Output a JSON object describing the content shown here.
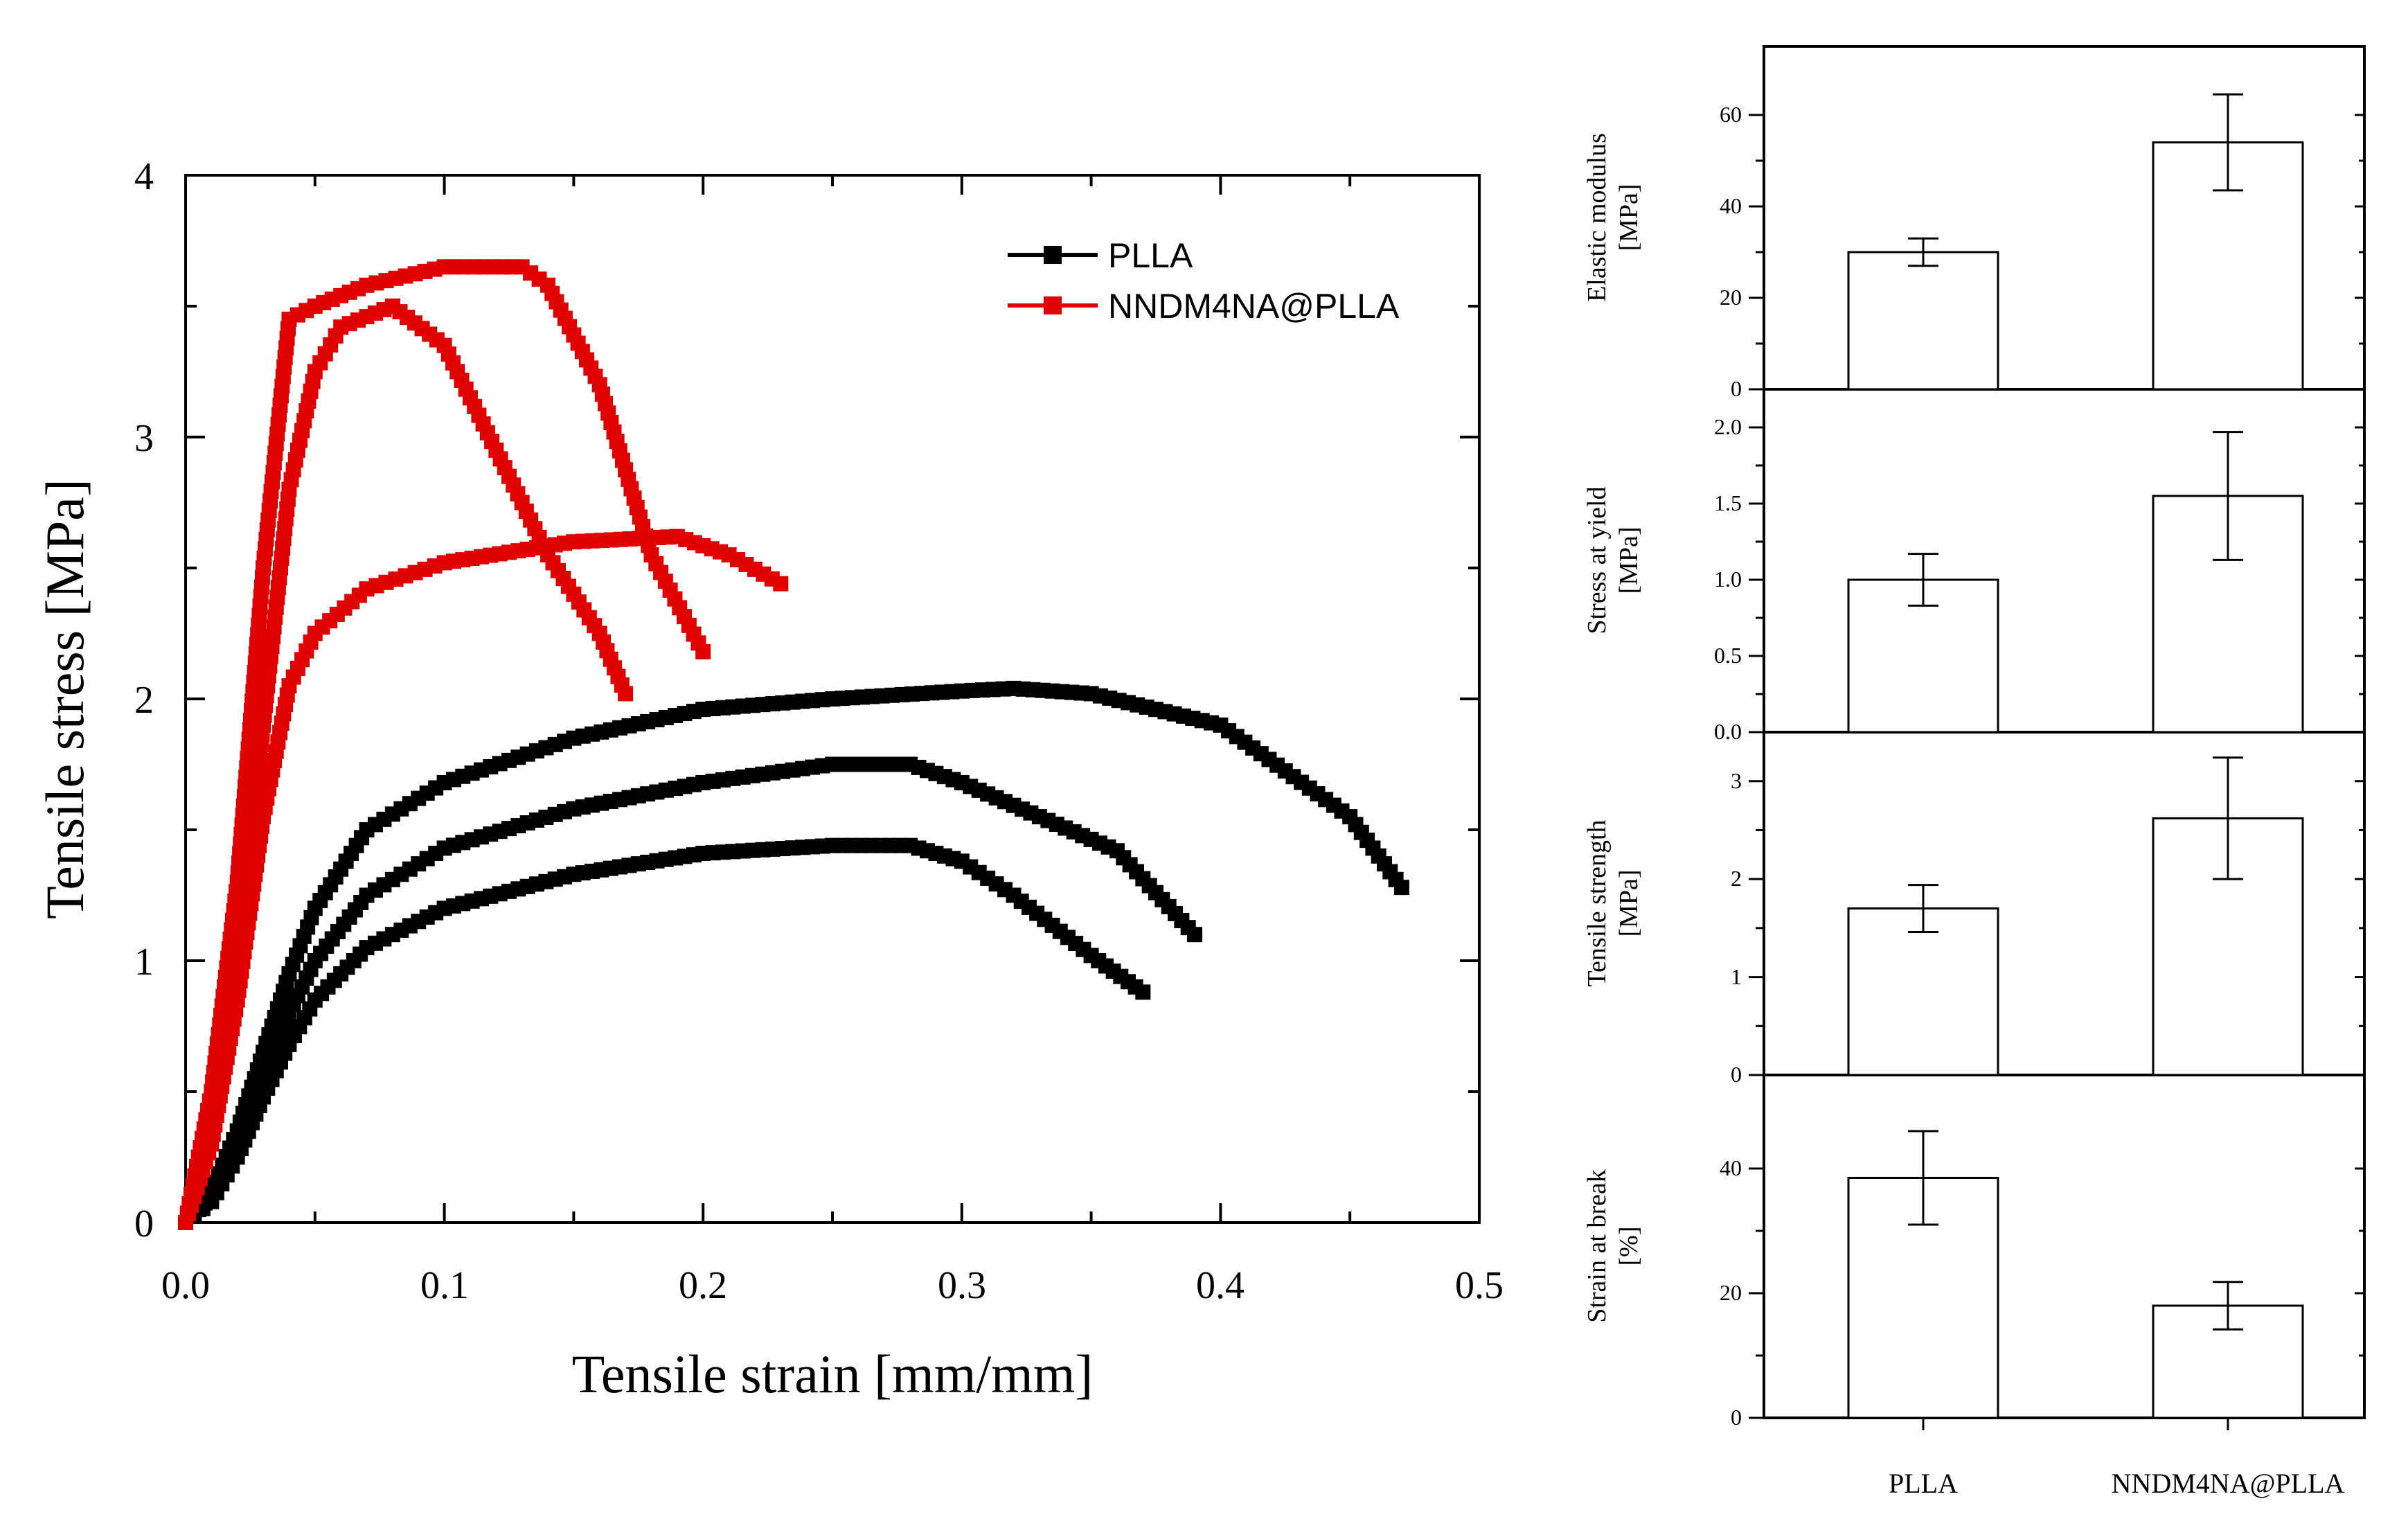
{
  "main_chart": {
    "xlabel": "Tensile strain [mm/mm]",
    "ylabel": "Tensile stress [MPa]",
    "xticks": [
      "0.0",
      "0.1",
      "0.2",
      "0.3",
      "0.4",
      "0.5"
    ],
    "yticks": [
      "0",
      "1",
      "2",
      "3",
      "4"
    ],
    "legend": [
      "PLLA",
      "NNDM4NA@PLLA"
    ]
  },
  "bar_panels": {
    "categories": [
      "PLLA",
      "NNDM4NA@PLLA"
    ],
    "panels": [
      {
        "ylabel_line1": "Elastic modulus",
        "ylabel_line2": "[MPa]",
        "ticks": [
          "0",
          "20",
          "40",
          "60"
        ]
      },
      {
        "ylabel_line1": "Stress at yield",
        "ylabel_line2": "[MPa]",
        "ticks": [
          "0.0",
          "0.5",
          "1.0",
          "1.5",
          "2.0"
        ]
      },
      {
        "ylabel_line1": "Tensile strength",
        "ylabel_line2": "[MPa]",
        "ticks": [
          "0",
          "1",
          "2",
          "3"
        ]
      },
      {
        "ylabel_line1": "Strain at break",
        "ylabel_line2": "[%]",
        "ticks": [
          "0",
          "20",
          "40"
        ]
      }
    ]
  },
  "chart_data": [
    {
      "type": "line",
      "title": "",
      "xlabel": "Tensile strain [mm/mm]",
      "ylabel": "Tensile stress [MPa]",
      "xlim": [
        0,
        0.5
      ],
      "ylim": [
        0,
        4
      ],
      "legend_position": "top-right",
      "series": [
        {
          "name": "PLLA",
          "color": "#000000",
          "marker": "square",
          "x": [
            0,
            0.01,
            0.02,
            0.03,
            0.04,
            0.05,
            0.07,
            0.1,
            0.15,
            0.2,
            0.25,
            0.3,
            0.32,
            0.35,
            0.4,
            0.45,
            0.47
          ],
          "y": [
            0,
            0.12,
            0.35,
            0.65,
            0.95,
            1.2,
            1.5,
            1.68,
            1.85,
            1.96,
            2.0,
            2.03,
            2.04,
            2.02,
            1.9,
            1.55,
            1.28
          ]
        },
        {
          "name": "PLLA",
          "color": "#000000",
          "marker": "square",
          "x": [
            0,
            0.01,
            0.02,
            0.03,
            0.04,
            0.05,
            0.07,
            0.1,
            0.15,
            0.2,
            0.25,
            0.28,
            0.3,
            0.33,
            0.36,
            0.39
          ],
          "y": [
            0,
            0.1,
            0.28,
            0.55,
            0.8,
            1.0,
            1.25,
            1.43,
            1.58,
            1.68,
            1.75,
            1.75,
            1.68,
            1.55,
            1.42,
            1.1
          ]
        },
        {
          "name": "PLLA",
          "color": "#000000",
          "marker": "square",
          "x": [
            0,
            0.01,
            0.02,
            0.03,
            0.04,
            0.05,
            0.07,
            0.1,
            0.15,
            0.2,
            0.25,
            0.28,
            0.3,
            0.32,
            0.35,
            0.37
          ],
          "y": [
            0,
            0.08,
            0.25,
            0.48,
            0.68,
            0.85,
            1.05,
            1.2,
            1.33,
            1.41,
            1.44,
            1.44,
            1.38,
            1.25,
            1.02,
            0.88
          ]
        },
        {
          "name": "NNDM4NA@PLLA",
          "color": "#e00000",
          "marker": "square",
          "x": [
            0,
            0.01,
            0.02,
            0.03,
            0.04,
            0.05,
            0.07,
            0.1,
            0.13,
            0.14,
            0.16,
            0.18,
            0.2
          ],
          "y": [
            0,
            0.5,
            1.3,
            2.5,
            3.45,
            3.5,
            3.58,
            3.65,
            3.65,
            3.58,
            3.2,
            2.55,
            2.18
          ]
        },
        {
          "name": "NNDM4NA@PLLA",
          "color": "#e00000",
          "marker": "square",
          "x": [
            0,
            0.01,
            0.02,
            0.03,
            0.04,
            0.05,
            0.06,
            0.08,
            0.1,
            0.12,
            0.14,
            0.16,
            0.17
          ],
          "y": [
            0,
            0.35,
            1.0,
            1.9,
            2.8,
            3.25,
            3.42,
            3.5,
            3.35,
            2.95,
            2.55,
            2.25,
            2.02
          ]
        },
        {
          "name": "NNDM4NA@PLLA",
          "color": "#e00000",
          "marker": "square",
          "x": [
            0,
            0.01,
            0.02,
            0.03,
            0.04,
            0.05,
            0.07,
            0.1,
            0.15,
            0.19,
            0.21,
            0.23
          ],
          "y": [
            0,
            0.3,
            0.85,
            1.55,
            2.05,
            2.25,
            2.42,
            2.52,
            2.6,
            2.62,
            2.55,
            2.44
          ]
        }
      ]
    },
    {
      "type": "bar",
      "ylabel": "Elastic modulus [MPa]",
      "categories": [
        "PLLA",
        "NNDM4NA@PLLA"
      ],
      "values": [
        30,
        54
      ],
      "errors": [
        3,
        10.5
      ],
      "ylim": [
        0,
        75
      ]
    },
    {
      "type": "bar",
      "ylabel": "Stress at yield [MPa]",
      "categories": [
        "PLLA",
        "NNDM4NA@PLLA"
      ],
      "values": [
        1.0,
        1.55
      ],
      "errors": [
        0.17,
        0.42
      ],
      "ylim": [
        0,
        2.25
      ]
    },
    {
      "type": "bar",
      "ylabel": "Tensile strength [MPa]",
      "categories": [
        "PLLA",
        "NNDM4NA@PLLA"
      ],
      "values": [
        1.7,
        2.62
      ],
      "errors": [
        0.24,
        0.62
      ],
      "ylim": [
        0,
        3.5
      ]
    },
    {
      "type": "bar",
      "ylabel": "Strain at break [%]",
      "categories": [
        "PLLA",
        "NNDM4NA@PLLA"
      ],
      "values": [
        38.5,
        18
      ],
      "errors": [
        7.5,
        3.8
      ],
      "ylim": [
        0,
        55
      ]
    }
  ]
}
